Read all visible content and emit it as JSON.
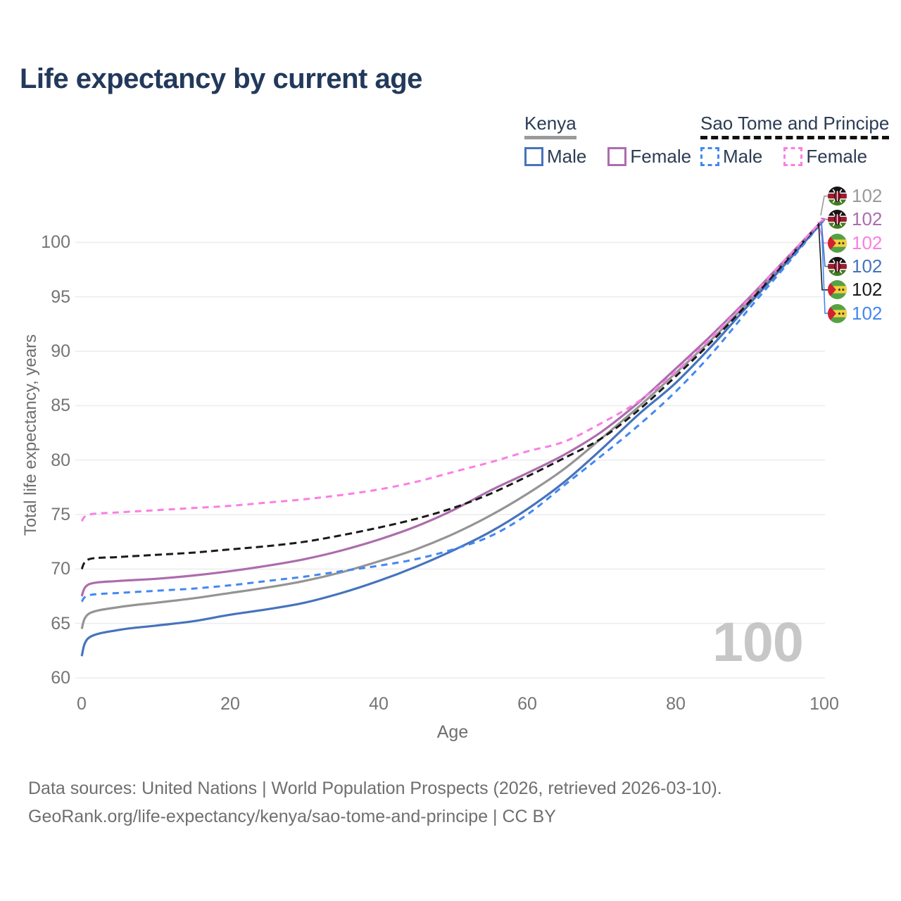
{
  "title": "Life expectancy by current age",
  "watermark": "100",
  "y_axis": {
    "label": "Total life expectancy, years",
    "ticks": [
      60,
      65,
      70,
      75,
      80,
      85,
      90,
      95,
      100
    ]
  },
  "x_axis": {
    "label": "Age",
    "ticks": [
      0,
      20,
      40,
      60,
      80,
      100
    ]
  },
  "legend": {
    "groups": [
      {
        "name": "Kenya",
        "underline_style": "solid",
        "underline_color": "#9a9a9a",
        "items": [
          {
            "label": "Male",
            "color": "#4673bd",
            "dashed": false
          },
          {
            "label": "Female",
            "color": "#ad6cad",
            "dashed": false
          }
        ]
      },
      {
        "name": "Sao Tome and Principe",
        "underline_style": "dashed",
        "underline_color": "#111111",
        "items": [
          {
            "label": "Male",
            "color": "#4387f2",
            "dashed": true
          },
          {
            "label": "Female",
            "color": "#fb7ee3",
            "dashed": true
          }
        ]
      }
    ]
  },
  "end_labels": [
    {
      "flag": "kenya",
      "value": "102",
      "color": "#9a9a9a"
    },
    {
      "flag": "kenya",
      "value": "102",
      "color": "#ad6cad"
    },
    {
      "flag": "stp",
      "value": "102",
      "color": "#fb7ee3"
    },
    {
      "flag": "kenya",
      "value": "102",
      "color": "#4673bd"
    },
    {
      "flag": "stp",
      "value": "102",
      "color": "#1a1a1a"
    },
    {
      "flag": "stp",
      "value": "102",
      "color": "#4387f2"
    }
  ],
  "footer": {
    "line1": "Data sources: United Nations | World Population Prospects (2026, retrieved 2026-03-10).",
    "line2": "GeoRank.org/life-expectancy/kenya/sao-tome-and-principe | CC BY"
  },
  "colors": {
    "title": "#22395c",
    "grid": "#ececec",
    "tick_text": "#757575",
    "axis_title_text": "#6e6e6e",
    "watermark": "#c7c7c7",
    "footer_text": "#6f6f6f"
  },
  "chart_data": {
    "type": "line",
    "title": "Life expectancy by current age",
    "xlabel": "Age",
    "ylabel": "Total life expectancy, years",
    "xlim": [
      0,
      100
    ],
    "ylim": [
      60,
      102.5
    ],
    "grid": "horizontal",
    "x": [
      0,
      1,
      5,
      10,
      15,
      20,
      25,
      30,
      35,
      40,
      45,
      50,
      55,
      60,
      65,
      70,
      75,
      80,
      85,
      90,
      95,
      100
    ],
    "series": [
      {
        "name": "Kenya Total",
        "country": "kenya",
        "color": "#949494",
        "dash": null,
        "values": [
          64.5,
          65.9,
          66.5,
          66.9,
          67.3,
          67.8,
          68.3,
          68.9,
          69.7,
          70.7,
          71.8,
          73.2,
          74.9,
          76.9,
          79.2,
          82.0,
          84.9,
          88.0,
          91.2,
          94.7,
          98.4,
          102.2
        ]
      },
      {
        "name": "Kenya Male",
        "country": "kenya",
        "color": "#4673bd",
        "dash": null,
        "values": [
          62.0,
          63.7,
          64.4,
          64.8,
          65.2,
          65.8,
          66.3,
          66.9,
          67.8,
          68.9,
          70.2,
          71.7,
          73.4,
          75.5,
          78.0,
          81.0,
          84.2,
          87.1,
          90.6,
          94.4,
          98.2,
          102.1
        ]
      },
      {
        "name": "Kenya Female",
        "country": "kenya",
        "color": "#ad6cad",
        "dash": null,
        "values": [
          67.5,
          68.6,
          68.9,
          69.1,
          69.4,
          69.8,
          70.3,
          70.9,
          71.7,
          72.7,
          73.9,
          75.4,
          77.2,
          78.8,
          80.5,
          82.6,
          85.3,
          88.4,
          91.6,
          95.0,
          98.6,
          102.2
        ]
      },
      {
        "name": "Sao Tome and Principe Male",
        "country": "stp",
        "color": "#4387f2",
        "dash": "9 7",
        "values": [
          67.0,
          67.6,
          67.8,
          68.0,
          68.2,
          68.5,
          68.9,
          69.3,
          69.8,
          70.3,
          70.9,
          71.8,
          73.0,
          75.0,
          77.7,
          80.4,
          83.2,
          86.3,
          89.9,
          94.0,
          98.0,
          102.1
        ]
      },
      {
        "name": "Sao Tome and Principe Total",
        "country": "stp",
        "color": "#1a1a1a",
        "dash": "10 6",
        "values": [
          70.0,
          70.9,
          71.1,
          71.3,
          71.5,
          71.8,
          72.1,
          72.5,
          73.1,
          73.8,
          74.6,
          75.6,
          76.9,
          78.5,
          80.2,
          82.0,
          84.6,
          87.7,
          91.0,
          94.6,
          98.4,
          102.2
        ]
      },
      {
        "name": "Sao Tome and Principe Female",
        "country": "stp",
        "color": "#fb7ee3",
        "dash": "9 7",
        "values": [
          74.4,
          75.0,
          75.2,
          75.4,
          75.6,
          75.8,
          76.1,
          76.4,
          76.8,
          77.3,
          78.0,
          78.9,
          79.8,
          80.8,
          81.7,
          83.4,
          85.4,
          88.1,
          91.4,
          94.9,
          98.6,
          102.2
        ]
      }
    ]
  }
}
